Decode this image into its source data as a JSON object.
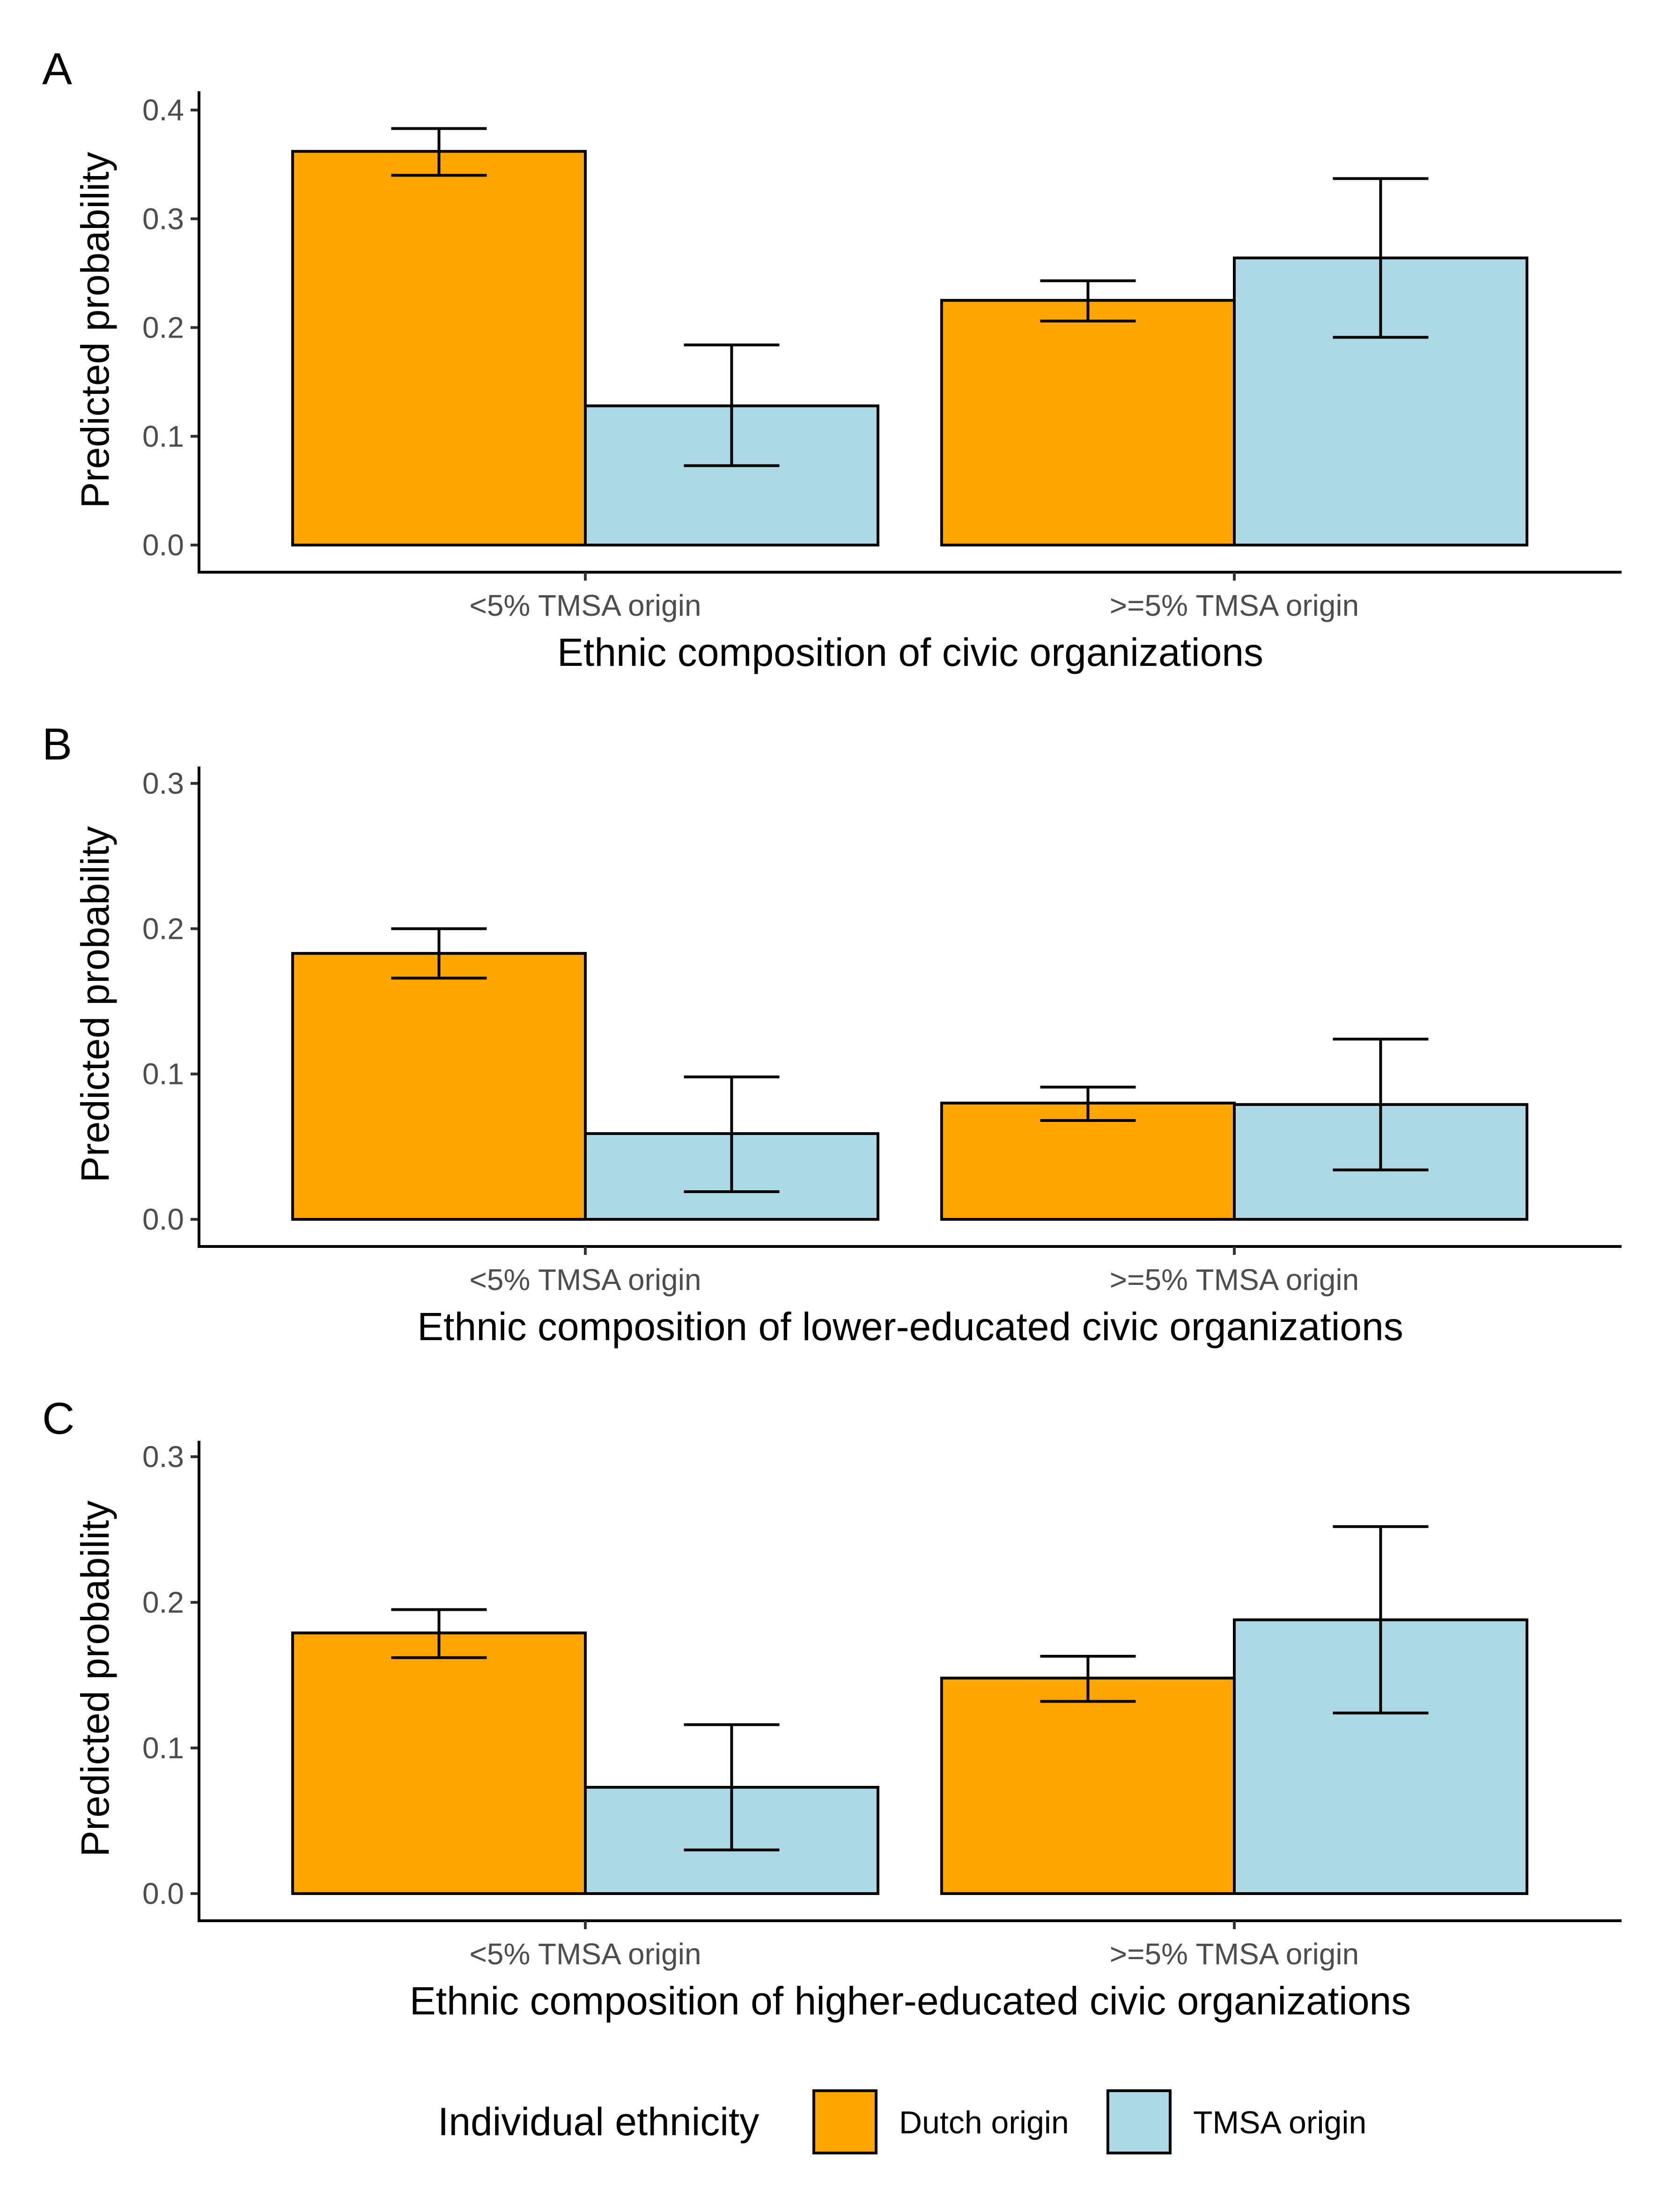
{
  "colors": {
    "dutch": "#FFA500",
    "tmsa": "#ADD8E6"
  },
  "legend": {
    "title": "Individual ethnicity",
    "items": [
      "Dutch origin",
      "TMSA origin"
    ]
  },
  "chart_data": [
    {
      "type": "bar",
      "panel": "A",
      "categories": [
        "<5% TMSA origin",
        ">=5% TMSA origin"
      ],
      "xlabel": "Ethnic composition of civic organizations",
      "ylabel": "Predicted probability",
      "ylim": [
        0,
        0.4
      ],
      "yticks": [
        0.0,
        0.1,
        0.2,
        0.3,
        0.4
      ],
      "ytick_labels": [
        "0.0",
        "0.1",
        "0.2",
        "0.3",
        "0.4"
      ],
      "series": [
        {
          "name": "Dutch origin",
          "values": [
            0.362,
            0.225
          ],
          "lower": [
            0.34,
            0.206
          ],
          "upper": [
            0.383,
            0.243
          ]
        },
        {
          "name": "TMSA origin",
          "values": [
            0.128,
            0.264
          ],
          "lower": [
            0.073,
            0.191
          ],
          "upper": [
            0.184,
            0.337
          ]
        }
      ]
    },
    {
      "type": "bar",
      "panel": "B",
      "categories": [
        "<5% TMSA origin",
        ">=5% TMSA origin"
      ],
      "xlabel": "Ethnic composition of lower-educated civic organizations",
      "ylabel": "Predicted probability",
      "ylim": [
        0,
        0.3
      ],
      "yticks": [
        0.0,
        0.1,
        0.2,
        0.3
      ],
      "ytick_labels": [
        "0.0",
        "0.1",
        "0.2",
        "0.3"
      ],
      "series": [
        {
          "name": "Dutch origin",
          "values": [
            0.183,
            0.08
          ],
          "lower": [
            0.166,
            0.068
          ],
          "upper": [
            0.2,
            0.091
          ]
        },
        {
          "name": "TMSA origin",
          "values": [
            0.059,
            0.079
          ],
          "lower": [
            0.019,
            0.034
          ],
          "upper": [
            0.098,
            0.124
          ]
        }
      ]
    },
    {
      "type": "bar",
      "panel": "C",
      "categories": [
        "<5% TMSA origin",
        ">=5% TMSA origin"
      ],
      "xlabel": "Ethnic composition of higher-educated civic organizations",
      "ylabel": "Predicted probability",
      "ylim": [
        0,
        0.3
      ],
      "yticks": [
        0.0,
        0.1,
        0.2,
        0.3
      ],
      "ytick_labels": [
        "0.0",
        "0.1",
        "0.2",
        "0.3"
      ],
      "series": [
        {
          "name": "Dutch origin",
          "values": [
            0.179,
            0.148
          ],
          "lower": [
            0.162,
            0.132
          ],
          "upper": [
            0.195,
            0.163
          ]
        },
        {
          "name": "TMSA origin",
          "values": [
            0.073,
            0.188
          ],
          "lower": [
            0.03,
            0.124
          ],
          "upper": [
            0.116,
            0.252
          ]
        }
      ]
    }
  ]
}
